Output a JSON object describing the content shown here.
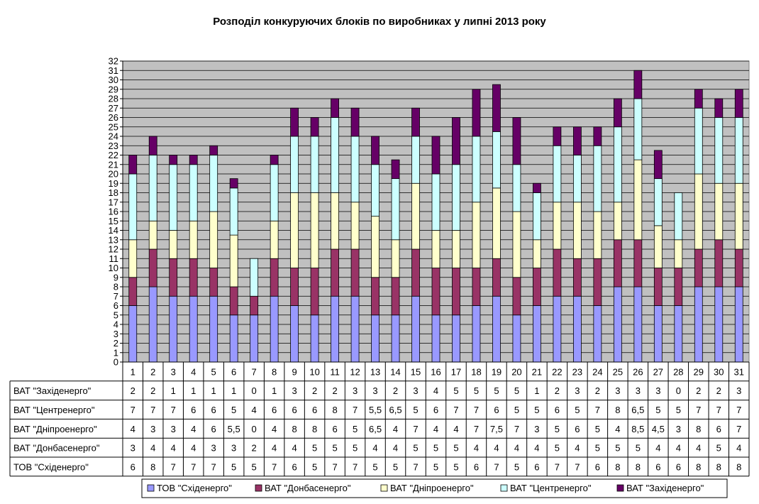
{
  "chart_data": {
    "type": "bar",
    "stacked": true,
    "title": "Розподіл конкуруючих блоків по виробниках у липні 2013 року",
    "ylim": [
      0,
      32
    ],
    "yticks": [
      0,
      1,
      2,
      3,
      4,
      5,
      6,
      7,
      8,
      9,
      10,
      11,
      12,
      13,
      14,
      15,
      16,
      17,
      18,
      19,
      20,
      21,
      22,
      23,
      24,
      25,
      26,
      27,
      28,
      29,
      30,
      31,
      32
    ],
    "grid": true,
    "legend_position": "bottom",
    "categories": [
      "1",
      "2",
      "3",
      "4",
      "5",
      "6",
      "7",
      "8",
      "9",
      "10",
      "11",
      "12",
      "13",
      "14",
      "15",
      "16",
      "17",
      "18",
      "19",
      "20",
      "21",
      "22",
      "23",
      "24",
      "25",
      "26",
      "27",
      "28",
      "29",
      "30",
      "31"
    ],
    "series": [
      {
        "name": "ТОВ \"Східенерго\"",
        "color": "#9999FF",
        "values": [
          6,
          8,
          7,
          7,
          7,
          5,
          5,
          7,
          6,
          5,
          7,
          7,
          5,
          5,
          7,
          5,
          5,
          6,
          7,
          5,
          6,
          7,
          7,
          6,
          8,
          8,
          6,
          6,
          8,
          8,
          8
        ]
      },
      {
        "name": "ВАТ \"Донбасенерго\"",
        "color": "#993366",
        "values": [
          3,
          4,
          4,
          4,
          3,
          3,
          2,
          4,
          4,
          5,
          5,
          5,
          4,
          4,
          5,
          5,
          5,
          4,
          4,
          4,
          4,
          5,
          4,
          5,
          5,
          5,
          4,
          4,
          4,
          5,
          4
        ]
      },
      {
        "name": "ВАТ \"Дніпроенерго\"",
        "color": "#FFFFCC",
        "values": [
          4,
          3,
          3,
          4,
          6,
          5.5,
          0,
          4,
          8,
          8,
          6,
          5,
          6.5,
          4,
          7,
          4,
          4,
          7,
          7.5,
          7,
          3,
          5,
          6,
          5,
          4,
          8.5,
          4.5,
          3,
          8,
          6,
          7
        ]
      },
      {
        "name": "ВАТ \"Центренерго\"",
        "color": "#CCFFFF",
        "values": [
          7,
          7,
          7,
          6,
          6,
          5,
          4,
          6,
          6,
          6,
          8,
          7,
          5.5,
          6.5,
          5,
          6,
          7,
          7,
          6,
          5,
          5,
          6,
          5,
          7,
          8,
          6.5,
          5,
          5,
          7,
          7,
          7
        ]
      },
      {
        "name": "ВАТ \"Західенерго\"",
        "color": "#660066",
        "values": [
          2,
          2,
          1,
          1,
          1,
          1,
          0,
          1,
          3,
          2,
          2,
          3,
          3,
          2,
          3,
          4,
          5,
          5,
          5,
          5,
          1,
          2,
          3,
          2,
          3,
          3,
          3,
          0,
          2,
          2,
          3
        ]
      }
    ],
    "table_row_order": [
      4,
      3,
      2,
      1,
      0
    ],
    "number_format_decimal": ","
  }
}
